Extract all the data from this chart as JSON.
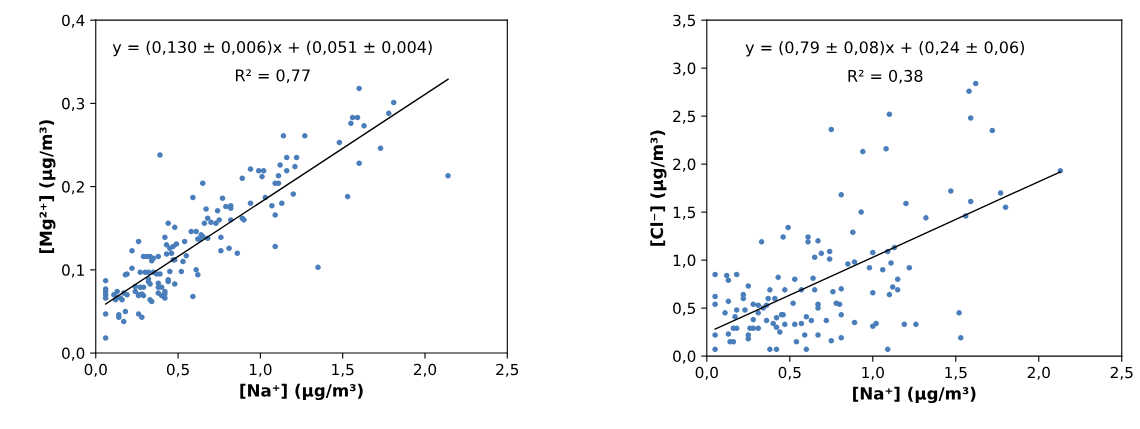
{
  "chart_data": [
    {
      "type": "scatter",
      "xlabel": "[Na⁺] (µg/m³)",
      "ylabel": "[Mg²⁺] (µg/m³)",
      "grid": false,
      "annotations": [
        "y = (0,130 ± 0,006)x + (0,051 ± 0,004)",
        "R² = 0,77"
      ],
      "xlim": [
        0,
        2.5
      ],
      "xticks": [
        {
          "value": 0,
          "label": "0,0"
        },
        {
          "value": 0.5,
          "label": "0,5"
        },
        {
          "value": 1,
          "label": "1,0"
        },
        {
          "value": 1.5,
          "label": "1,5"
        },
        {
          "value": 2,
          "label": "2,0"
        },
        {
          "value": 2.5,
          "label": "2,5"
        }
      ],
      "ylim": [
        0,
        0.4
      ],
      "yticks": [
        {
          "value": 0,
          "label": "0,0"
        },
        {
          "value": 0.1,
          "label": "0,1"
        },
        {
          "value": 0.2,
          "label": "0,2"
        },
        {
          "value": 0.3,
          "label": "0,3"
        },
        {
          "value": 0.4,
          "label": "0,4"
        }
      ],
      "series": [
        {
          "marker": "circle",
          "color": "#4a7ebb",
          "x": [
            0.39,
            1.6,
            1.81,
            1.78,
            1.55,
            1.56,
            1.59,
            1.63,
            1.14,
            1.27,
            1.48,
            1.73,
            1.6,
            2.14,
            1.16,
            1.22,
            1.12,
            1.21,
            0.94,
            0.99,
            1.02,
            1.01,
            1.16,
            1.11,
            0.89,
            0.65,
            1.09,
            1.11,
            0.59,
            0.77,
            1.03,
            1.2,
            1.53,
            0.94,
            1.07,
            1.13,
            0.67,
            0.74,
            0.79,
            0.82,
            0.82,
            1.09,
            0.68,
            0.7,
            0.73,
            0.75,
            0.82,
            0.89,
            0.9,
            0.66,
            0.44,
            0.48,
            0.58,
            0.61,
            0.64,
            0.65,
            0.68,
            0.62,
            0.63,
            0.76,
            0.42,
            0.26,
            0.54,
            0.43,
            0.49,
            0.47,
            0.45,
            0.76,
            0.81,
            0.86,
            0.22,
            0.43,
            0.46,
            0.55,
            1.09,
            0.29,
            0.31,
            0.33,
            0.38,
            0.34,
            0.35,
            0.47,
            0.48,
            0.53,
            0.22,
            0.27,
            0.3,
            0.32,
            0.35,
            0.37,
            0.39,
            0.45,
            0.52,
            0.61,
            0.62,
            1.35,
            0.06,
            0.18,
            0.19,
            0.32,
            0.32,
            0.38,
            0.44,
            0.44,
            0.06,
            0.06,
            0.06,
            0.06,
            0.24,
            0.27,
            0.29,
            0.33,
            0.38,
            0.4,
            0.48,
            0.11,
            0.13,
            0.17,
            0.19,
            0.15,
            0.24,
            0.26,
            0.28,
            0.29,
            0.26,
            0.38,
            0.4,
            0.42,
            0.42,
            0.42,
            0.33,
            0.34,
            0.59,
            0.12,
            0.16,
            0.13,
            0.06,
            0.14,
            0.14,
            0.17,
            0.18,
            0.26,
            0.28,
            0.06
          ],
          "values": [
            0.238,
            0.318,
            0.301,
            0.288,
            0.276,
            0.283,
            0.283,
            0.273,
            0.261,
            0.261,
            0.253,
            0.246,
            0.228,
            0.213,
            0.235,
            0.235,
            0.226,
            0.224,
            0.221,
            0.219,
            0.219,
            0.212,
            0.219,
            0.213,
            0.21,
            0.204,
            0.204,
            0.204,
            0.187,
            0.186,
            0.187,
            0.191,
            0.188,
            0.18,
            0.177,
            0.18,
            0.173,
            0.171,
            0.176,
            0.177,
            0.174,
            0.166,
            0.162,
            0.157,
            0.156,
            0.16,
            0.16,
            0.162,
            0.16,
            0.156,
            0.156,
            0.151,
            0.146,
            0.146,
            0.142,
            0.14,
            0.138,
            0.137,
            0.137,
            0.139,
            0.139,
            0.134,
            0.134,
            0.13,
            0.131,
            0.128,
            0.126,
            0.123,
            0.126,
            0.12,
            0.123,
            0.119,
            0.12,
            0.117,
            0.128,
            0.116,
            0.116,
            0.116,
            0.116,
            0.111,
            0.114,
            0.112,
            0.112,
            0.11,
            0.102,
            0.097,
            0.097,
            0.097,
            0.097,
            0.095,
            0.095,
            0.098,
            0.098,
            0.1,
            0.094,
            0.103,
            0.087,
            0.094,
            0.095,
            0.089,
            0.086,
            0.084,
            0.086,
            0.088,
            0.077,
            0.074,
            0.07,
            0.066,
            0.08,
            0.079,
            0.079,
            0.083,
            0.079,
            0.079,
            0.083,
            0.07,
            0.074,
            0.072,
            0.07,
            0.066,
            0.074,
            0.07,
            0.071,
            0.069,
            0.069,
            0.072,
            0.069,
            0.074,
            0.071,
            0.066,
            0.064,
            0.062,
            0.068,
            0.064,
            0.064,
            0.067,
            0.047,
            0.046,
            0.043,
            0.038,
            0.05,
            0.047,
            0.043,
            0.018
          ]
        },
        {
          "type": "line",
          "color": "#000000",
          "x": [
            0.06,
            2.14
          ],
          "values": [
            0.059,
            0.329
          ]
        }
      ]
    },
    {
      "type": "scatter",
      "xlabel": "[Na⁺] (µg/m³)",
      "ylabel": "[Cl⁻] (µg/m³)",
      "grid": false,
      "annotations": [
        "y = (0,79 ± 0,08)x + (0,24 ± 0,06)",
        "R² = 0,38"
      ],
      "xlim": [
        0,
        2.5
      ],
      "xticks": [
        {
          "value": 0,
          "label": "0,0"
        },
        {
          "value": 0.5,
          "label": "0,5"
        },
        {
          "value": 1,
          "label": "1,0"
        },
        {
          "value": 1.5,
          "label": "1,5"
        },
        {
          "value": 2,
          "label": "2,0"
        },
        {
          "value": 2.5,
          "label": "2,5"
        }
      ],
      "ylim": [
        0,
        3.5
      ],
      "yticks": [
        {
          "value": 0,
          "label": "0,0"
        },
        {
          "value": 0.5,
          "label": "0,5"
        },
        {
          "value": 1,
          "label": "1,0"
        },
        {
          "value": 1.5,
          "label": "1,5"
        },
        {
          "value": 2,
          "label": "2,0"
        },
        {
          "value": 2.5,
          "label": "2,5"
        },
        {
          "value": 3,
          "label": "3,0"
        },
        {
          "value": 3.5,
          "label": "3,5"
        }
      ],
      "series": [
        {
          "marker": "circle",
          "color": "#4a7ebb",
          "x": [
            0.75,
            1.1,
            0.94,
            1.08,
            1.58,
            1.62,
            1.59,
            1.72,
            2.13,
            0.81,
            1.47,
            1.77,
            1.8,
            1.59,
            1.2,
            0.93,
            1.32,
            1.56,
            0.49,
            0.46,
            0.61,
            0.61,
            0.67,
            0.33,
            0.88,
            0.74,
            0.74,
            0.65,
            0.69,
            1.0,
            1.13,
            1.09,
            0.85,
            0.89,
            0.98,
            1.06,
            1.11,
            1.22,
            1.15,
            1.12,
            1.15,
            1.0,
            1.1,
            1.52,
            1.53,
            1.19,
            1.26,
            1.0,
            1.02,
            1.09,
            0.89,
            0.81,
            0.81,
            0.81,
            0.78,
            0.8,
            0.76,
            0.75,
            0.72,
            0.67,
            0.67,
            0.67,
            0.63,
            0.64,
            0.65,
            0.6,
            0.6,
            0.59,
            0.57,
            0.57,
            0.54,
            0.53,
            0.53,
            0.52,
            0.47,
            0.46,
            0.47,
            0.45,
            0.42,
            0.43,
            0.42,
            0.44,
            0.42,
            0.38,
            0.4,
            0.41,
            0.38,
            0.37,
            0.36,
            0.36,
            0.34,
            0.31,
            0.31,
            0.31,
            0.28,
            0.25,
            0.26,
            0.28,
            0.25,
            0.22,
            0.22,
            0.28,
            0.25,
            0.23,
            0.16,
            0.18,
            0.18,
            0.13,
            0.13,
            0.14,
            0.16,
            0.12,
            0.13,
            0.18,
            0.11,
            0.05,
            0.05,
            0.05,
            0.05,
            0.05,
            0.17
          ],
          "values": [
            2.36,
            2.52,
            2.13,
            2.16,
            2.76,
            2.84,
            2.48,
            2.35,
            1.93,
            1.68,
            1.72,
            1.7,
            1.55,
            1.61,
            1.59,
            1.5,
            1.44,
            1.46,
            1.34,
            1.24,
            1.24,
            1.19,
            1.2,
            1.19,
            1.29,
            1.09,
            1.01,
            1.03,
            1.07,
            1.08,
            1.13,
            1.09,
            0.96,
            0.98,
            0.92,
            0.9,
            0.97,
            0.92,
            0.8,
            0.72,
            0.69,
            0.66,
            0.64,
            0.45,
            0.19,
            0.33,
            0.33,
            0.31,
            0.34,
            0.07,
            0.35,
            0.43,
            0.19,
            0.7,
            0.55,
            0.54,
            0.67,
            0.16,
            0.37,
            0.22,
            0.5,
            0.54,
            0.37,
            0.81,
            0.69,
            0.41,
            0.07,
            0.22,
            0.69,
            0.34,
            0.15,
            0.33,
            0.8,
            0.55,
            0.33,
            0.43,
            0.69,
            0.43,
            0.4,
            0.82,
            0.3,
            0.25,
            0.07,
            0.07,
            0.34,
            0.6,
            0.69,
            0.6,
            0.53,
            0.37,
            0.5,
            0.29,
            0.53,
            0.45,
            0.54,
            0.22,
            0.29,
            0.29,
            0.73,
            0.64,
            0.6,
            0.38,
            0.18,
            0.48,
            0.29,
            0.29,
            0.48,
            0.57,
            0.23,
            0.15,
            0.15,
            0.84,
            0.79,
            0.85,
            0.45,
            0.07,
            0.22,
            0.54,
            0.62,
            0.85,
            0.41
          ]
        },
        {
          "type": "line",
          "color": "#000000",
          "x": [
            0.05,
            2.13
          ],
          "values": [
            0.28,
            1.92
          ]
        }
      ]
    }
  ]
}
